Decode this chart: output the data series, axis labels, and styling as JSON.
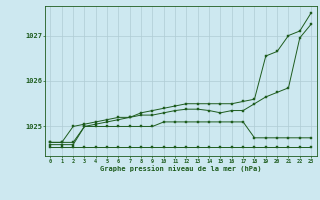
{
  "xlabel": "Graphe pression niveau de la mer (hPa)",
  "x_ticks": [
    0,
    1,
    2,
    3,
    4,
    5,
    6,
    7,
    8,
    9,
    10,
    11,
    12,
    13,
    14,
    15,
    16,
    17,
    18,
    19,
    20,
    21,
    22,
    23
  ],
  "ylim": [
    1024.35,
    1027.65
  ],
  "yticks": [
    1025,
    1026,
    1027
  ],
  "bg_color": "#cde8f0",
  "grid_color": "#b0ccd4",
  "line_color": "#1e5c1e",
  "series": [
    [
      1024.55,
      1024.55,
      1024.55,
      1024.55,
      1024.55,
      1024.55,
      1024.55,
      1024.55,
      1024.55,
      1024.55,
      1024.55,
      1024.55,
      1024.55,
      1024.55,
      1024.55,
      1024.55,
      1024.55,
      1024.55,
      1024.55,
      1024.55,
      1024.55,
      1024.55,
      1024.55,
      1024.55
    ],
    [
      1024.65,
      1024.65,
      1024.65,
      1025.0,
      1025.0,
      1025.0,
      1025.0,
      1025.0,
      1025.0,
      1025.0,
      1025.1,
      1025.1,
      1025.1,
      1025.1,
      1025.1,
      1025.1,
      1025.1,
      1025.1,
      1024.75,
      1024.75,
      1024.75,
      1024.75,
      1024.75,
      1024.75
    ],
    [
      1024.65,
      1024.65,
      1025.0,
      1025.05,
      1025.1,
      1025.15,
      1025.2,
      1025.2,
      1025.25,
      1025.25,
      1025.3,
      1025.35,
      1025.38,
      1025.38,
      1025.35,
      1025.3,
      1025.35,
      1025.35,
      1025.5,
      1025.65,
      1025.75,
      1025.85,
      1026.95,
      1027.25
    ],
    [
      1024.6,
      1024.6,
      1024.6,
      1025.0,
      1025.05,
      1025.1,
      1025.15,
      1025.2,
      1025.3,
      1025.35,
      1025.4,
      1025.45,
      1025.5,
      1025.5,
      1025.5,
      1025.5,
      1025.5,
      1025.55,
      1025.6,
      1026.55,
      1026.65,
      1027.0,
      1027.1,
      1027.5
    ]
  ]
}
